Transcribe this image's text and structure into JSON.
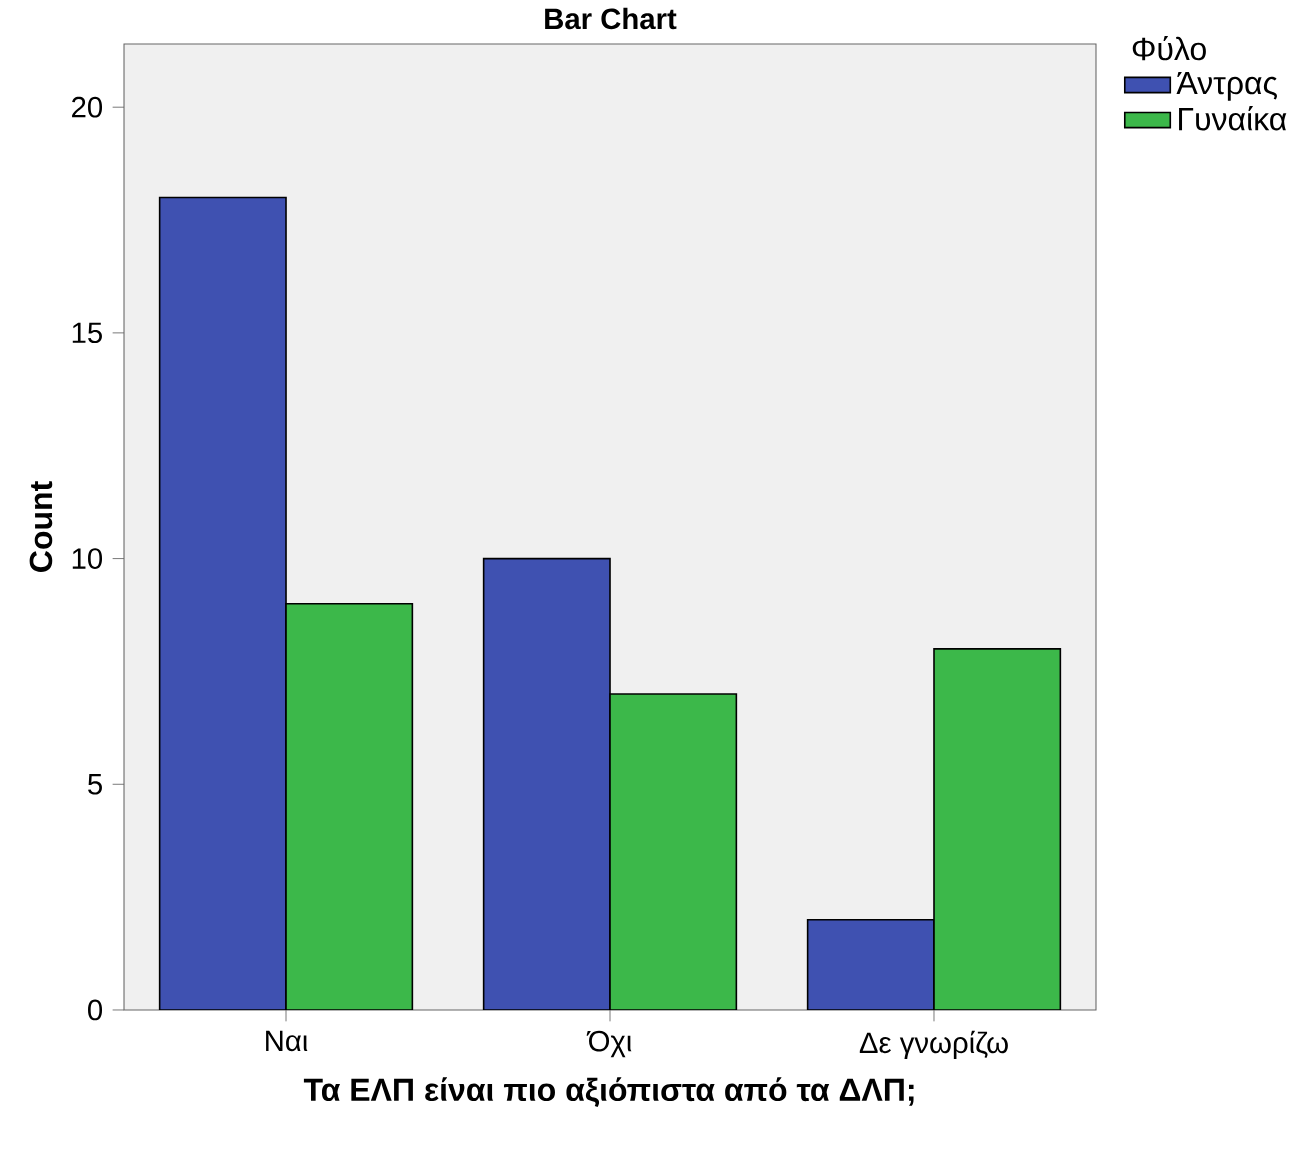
{
  "chart_data": {
    "type": "bar",
    "title": "Bar Chart",
    "xlabel": "Τα ΕΛΠ είναι πιο αξιόπιστα από τα ΔΛΠ;",
    "ylabel": "Count",
    "legend_title": "Φύλο",
    "legend": "top right",
    "categories": [
      "Ναι",
      "Όχι",
      "Δε γνωρίζω"
    ],
    "series": [
      {
        "name": "Άντρας",
        "color": "#3f51b1",
        "values": [
          18,
          10,
          2
        ]
      },
      {
        "name": "Γυναίκα",
        "color": "#3cb84a",
        "values": [
          9,
          7,
          8
        ]
      }
    ],
    "ylim": [
      0,
      21.4
    ],
    "yticks": [
      0,
      5,
      10,
      15,
      20
    ]
  }
}
